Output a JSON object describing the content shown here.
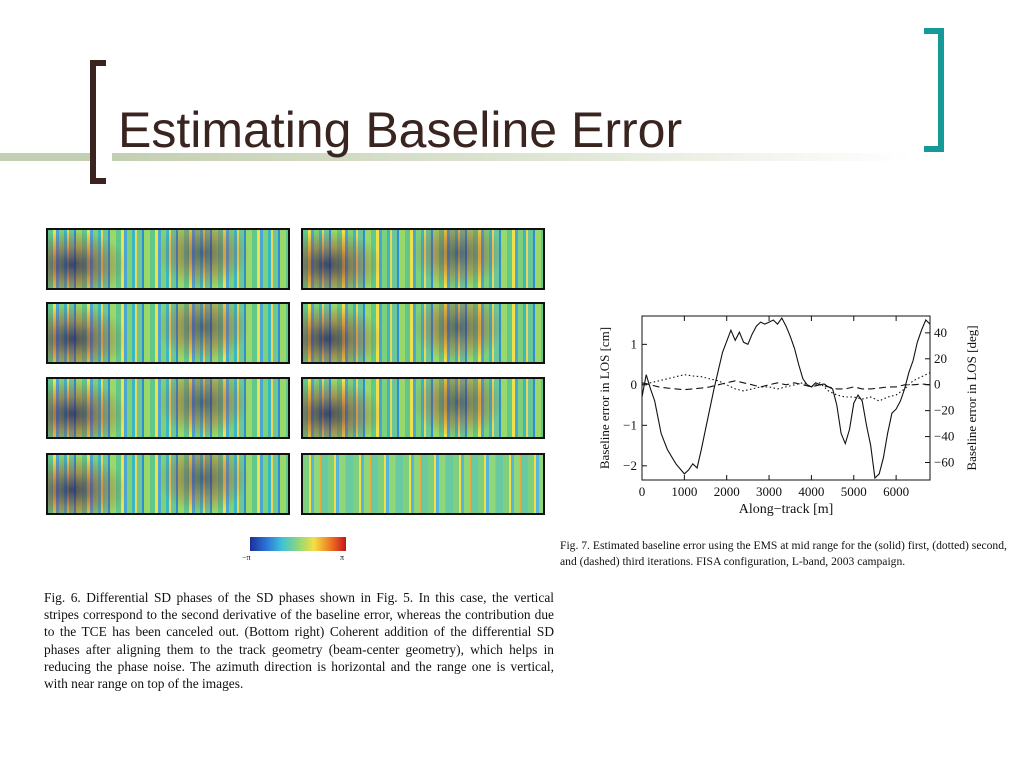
{
  "slide": {
    "title": "Estimating Baseline Error"
  },
  "figure6": {
    "colorbar": {
      "min_label": "−π",
      "max_label": "π"
    },
    "caption": "Fig. 6.   Differential SD phases of the SD phases shown in Fig. 5. In this case, the vertical stripes correspond to the second derivative of the baseline error, whereas the contribution due to the TCE has been canceled out. (Bottom right) Coherent addition of the differential SD phases after aligning them to the track geometry (beam-center geometry), which helps in reducing the phase noise. The azimuth direction is horizontal and the range one is vertical, with near range on top of the images."
  },
  "figure7": {
    "caption": "Fig. 7.   Estimated baseline error using the EMS at mid range for the (solid) first, (dotted) second, and (dashed) third iterations. FISA configuration, L-band, 2003 campaign."
  },
  "chart_data": {
    "type": "line",
    "title": "",
    "xlabel": "Along−track [m]",
    "ylabel": "Baseline error in LOS [cm]",
    "y2label": "Baseline error in LOS [deg]",
    "xlim": [
      0,
      6800
    ],
    "ylim": [
      -2.35,
      1.7
    ],
    "y2lim": [
      -73.5,
      53
    ],
    "x_ticks": [
      0,
      1000,
      2000,
      3000,
      4000,
      5000,
      6000
    ],
    "y_ticks": [
      -2,
      -1,
      0,
      1
    ],
    "y2_ticks": [
      -60,
      -40,
      -20,
      0,
      20,
      40
    ],
    "y_tick_labels": [
      "−2",
      "−1",
      "0",
      "1"
    ],
    "y2_tick_labels": [
      "−60",
      "−40",
      "−20",
      "0",
      "20",
      "40"
    ],
    "grid": false,
    "series": [
      {
        "style": "solid",
        "x": [
          0,
          100,
          200,
          300,
          450,
          600,
          800,
          1000,
          1100,
          1200,
          1300,
          1400,
          1500,
          1700,
          1900,
          2100,
          2200,
          2300,
          2400,
          2500,
          2600,
          2700,
          2800,
          2900,
          3000,
          3100,
          3200,
          3300,
          3400,
          3500,
          3600,
          3700,
          3800,
          3900,
          4000,
          4100,
          4200,
          4300,
          4400,
          4500,
          4600,
          4700,
          4800,
          4900,
          5000,
          5100,
          5200,
          5300,
          5400,
          5500,
          5600,
          5700,
          5800,
          5900,
          6000,
          6100,
          6200,
          6300,
          6400,
          6500,
          6600,
          6700,
          6800
        ],
        "y": [
          -0.3,
          0.25,
          -0.1,
          -0.4,
          -1.2,
          -1.6,
          -1.95,
          -2.2,
          -2.1,
          -1.95,
          -2.05,
          -1.6,
          -1.1,
          -0.1,
          0.8,
          1.35,
          1.1,
          1.3,
          1.05,
          1.0,
          1.25,
          1.45,
          1.55,
          1.5,
          1.55,
          1.6,
          1.5,
          1.65,
          1.45,
          1.2,
          0.9,
          0.5,
          0.15,
          0.0,
          -0.05,
          0.05,
          0.0,
          0.02,
          -0.05,
          -0.1,
          -0.5,
          -1.2,
          -1.45,
          -1.1,
          -0.45,
          -0.25,
          -0.4,
          -1.0,
          -1.5,
          -2.3,
          -2.2,
          -1.8,
          -1.2,
          -0.7,
          -0.6,
          -0.4,
          -0.1,
          0.3,
          0.6,
          1.05,
          1.35,
          1.6,
          1.5
        ]
      },
      {
        "style": "dotted",
        "x": [
          0,
          200,
          400,
          600,
          800,
          1000,
          1200,
          1400,
          1600,
          1800,
          2000,
          2200,
          2400,
          2600,
          2800,
          3000,
          3200,
          3400,
          3600,
          3800,
          4000,
          4200,
          4400,
          4600,
          4800,
          5000,
          5200,
          5400,
          5600,
          5800,
          6000,
          6200,
          6400,
          6600,
          6800
        ],
        "y": [
          0.0,
          0.05,
          0.1,
          0.15,
          0.2,
          0.25,
          0.22,
          0.2,
          0.15,
          0.1,
          0.0,
          -0.1,
          -0.15,
          -0.1,
          -0.05,
          -0.05,
          -0.1,
          -0.05,
          0.0,
          0.05,
          -0.05,
          0.05,
          -0.15,
          -0.25,
          -0.3,
          -0.3,
          -0.35,
          -0.3,
          -0.4,
          -0.3,
          -0.25,
          -0.1,
          0.1,
          0.2,
          0.3
        ]
      },
      {
        "style": "dashed",
        "x": [
          0,
          200,
          400,
          600,
          800,
          1000,
          1200,
          1400,
          1600,
          1800,
          2000,
          2200,
          2400,
          2600,
          2800,
          3000,
          3200,
          3400,
          3600,
          3800,
          4000,
          4200,
          4400,
          4600,
          4800,
          5000,
          5200,
          5400,
          5600,
          5800,
          6000,
          6200,
          6400,
          6600,
          6800
        ],
        "y": [
          0.05,
          0.0,
          -0.05,
          -0.08,
          -0.1,
          -0.12,
          -0.1,
          -0.08,
          -0.05,
          0.0,
          0.05,
          0.1,
          0.05,
          0.0,
          -0.05,
          0.0,
          0.05,
          0.0,
          0.05,
          0.0,
          -0.05,
          0.0,
          -0.05,
          -0.1,
          -0.1,
          -0.05,
          -0.1,
          -0.1,
          -0.08,
          -0.05,
          -0.05,
          0.0,
          0.0,
          0.02,
          0.0
        ]
      }
    ]
  }
}
